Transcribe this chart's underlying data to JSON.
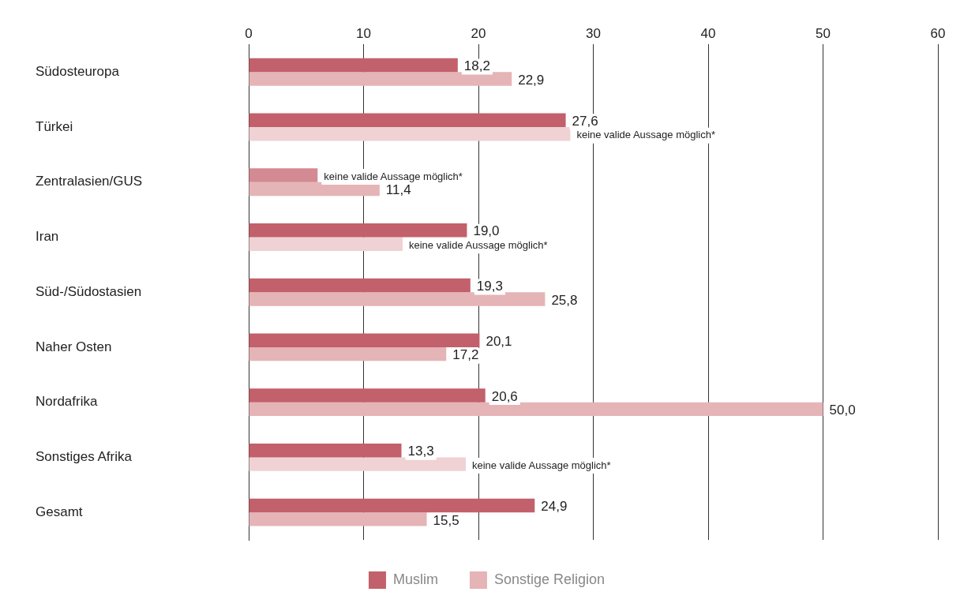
{
  "chart_data": {
    "type": "bar",
    "orientation": "horizontal",
    "categories": [
      "Südosteuropa",
      "Türkei",
      "Zentralasien/GUS",
      "Iran",
      "Süd-/Südostasien",
      "Naher Osten",
      "Nordafrika",
      "Sonstiges Afrika",
      "Gesamt"
    ],
    "series": [
      {
        "name": "Muslim",
        "color": "#c2606b",
        "colors": [
          "#c2606b",
          "#c2606b",
          "#d48a92",
          "#c2606b",
          "#c2606b",
          "#c2606b",
          "#c2606b",
          "#c2606b",
          "#c2606b"
        ],
        "values": [
          18.2,
          27.6,
          6.0,
          19.0,
          19.3,
          20.1,
          20.6,
          13.3,
          24.9
        ],
        "value_labels": [
          "18,2",
          "27,6",
          "keine valide Aussage möglich*",
          "19,0",
          "19,3",
          "20,1",
          "20,6",
          "13,3",
          "24,9"
        ]
      },
      {
        "name": "Sonstige Religion",
        "color": "#e5b4b7",
        "colors": [
          "#e5b4b7",
          "#f0d2d4",
          "#e5b4b7",
          "#f0d2d4",
          "#e5b4b7",
          "#e5b4b7",
          "#e5b4b7",
          "#f0d2d4",
          "#e5b4b7"
        ],
        "values": [
          22.9,
          28.0,
          11.4,
          13.4,
          25.8,
          17.2,
          50.0,
          18.9,
          15.5
        ],
        "value_labels": [
          "22,9",
          "keine valide Aussage möglich*",
          "11,4",
          "keine valide Aussage möglich*",
          "25,8",
          "17,2",
          "50,0",
          "keine valide Aussage möglich*",
          "15,5"
        ]
      }
    ],
    "xlim": [
      0,
      60
    ],
    "xticks": [
      0,
      10,
      20,
      30,
      40,
      50,
      60
    ],
    "grid": "x",
    "legend": "bottom"
  }
}
